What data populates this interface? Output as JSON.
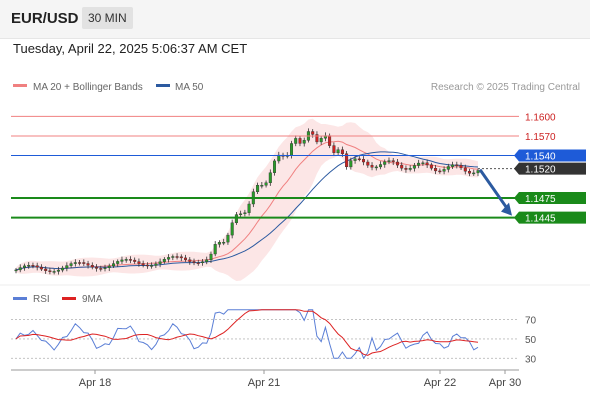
{
  "header": {
    "symbol": "EUR/USD",
    "timeframe": "30 MIN"
  },
  "datetime": "Tuesday, April 22, 2025 5:06:37 AM CET",
  "legend": {
    "ma20": {
      "label": "MA 20 + Bollinger Bands",
      "color": "#f08080"
    },
    "ma50": {
      "label": "MA 50",
      "color": "#2c5aa0"
    },
    "credit": "Research © 2025 Trading Central"
  },
  "rsi_legend": {
    "rsi": {
      "label": "RSI",
      "color": "#5b7fd6"
    },
    "ma9": {
      "label": "9MA",
      "color": "#dd2222"
    }
  },
  "chart_data": [
    {
      "type": "candlestick",
      "ylim": [
        1.1345,
        1.1625
      ],
      "x_ticks": [
        "Apr 18",
        "Apr 21",
        "Apr 22",
        "Apr 30"
      ],
      "levels": [
        {
          "value": "1.1600",
          "kind": "resistance",
          "color": "#f08080"
        },
        {
          "value": "1.1570",
          "kind": "resistance",
          "color": "#f08080"
        },
        {
          "value": "1.1540",
          "kind": "resistance",
          "color": "#1e5bd8"
        },
        {
          "value": "1.1520",
          "kind": "last-price",
          "color": "#333333"
        },
        {
          "value": "1.1475",
          "kind": "support",
          "color": "#1a8a1a"
        },
        {
          "value": "1.1445",
          "kind": "support",
          "color": "#1a8a1a"
        }
      ],
      "forecast": {
        "from": 1.152,
        "to": 1.1445,
        "direction": "down"
      },
      "series": [
        {
          "name": "MA 20",
          "color": "#f08080"
        },
        {
          "name": "MA 50",
          "color": "#2c5aa0"
        }
      ]
    },
    {
      "type": "line",
      "ylim": [
        20,
        85
      ],
      "y_ticks": [
        "70",
        "50",
        "30"
      ],
      "series": [
        {
          "name": "RSI",
          "color": "#5b7fd6"
        },
        {
          "name": "9MA",
          "color": "#dd2222"
        }
      ]
    }
  ]
}
